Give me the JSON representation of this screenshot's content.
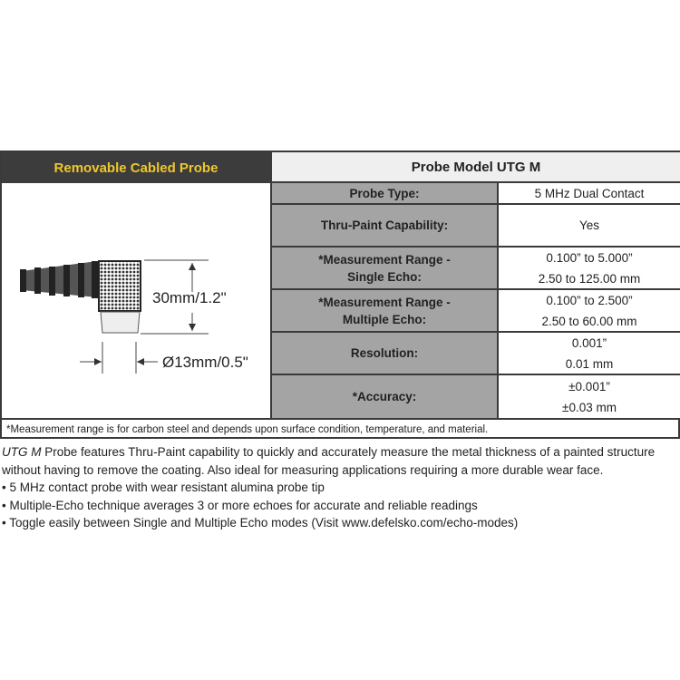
{
  "header": {
    "left": "Removable Cabled Probe",
    "right": "Probe Model UTG M"
  },
  "diagram": {
    "height_label": "30mm/1.2\"",
    "diameter_label": "Ø13mm/0.5\""
  },
  "specs": [
    {
      "label": [
        "Probe Type:"
      ],
      "values": [
        "5 MHz Dual Contact"
      ]
    },
    {
      "label": [
        "Thru-Paint Capability:"
      ],
      "values": [
        "Yes"
      ]
    },
    {
      "label": [
        "*Measurement Range -",
        "Single Echo:"
      ],
      "values": [
        "0.100” to 5.000”",
        "2.50 to 125.00 mm"
      ]
    },
    {
      "label": [
        "*Measurement Range -",
        "Multiple Echo:"
      ],
      "values": [
        "0.100” to 2.500”",
        "2.50 to 60.00 mm"
      ]
    },
    {
      "label": [
        "Resolution:"
      ],
      "values": [
        "0.001”",
        "0.01 mm"
      ]
    },
    {
      "label": [
        "*Accuracy:"
      ],
      "values": [
        "±0.001”",
        "±0.03 mm"
      ]
    }
  ],
  "footnote": "*Measurement range is for carbon steel and depends upon surface condition, temperature, and material.",
  "description": {
    "model_italic": "UTG M",
    "intro": " Probe features Thru-Paint capability to quickly and accurately measure the metal thickness of a painted structure without having to remove the coating. Also ideal for measuring applications requiring a more durable wear face.",
    "bullets": [
      "• 5 MHz contact probe with wear resistant alumina probe tip",
      "• Multiple-Echo technique averages 3 or more echoes for accurate and reliable readings",
      "• Toggle easily between Single and Multiple Echo modes (Visit www.defelsko.com/echo-modes)"
    ]
  },
  "colors": {
    "header_dark": "#3c3c3c",
    "header_text": "#f0c72c",
    "label_bg": "#a4a4a4"
  }
}
